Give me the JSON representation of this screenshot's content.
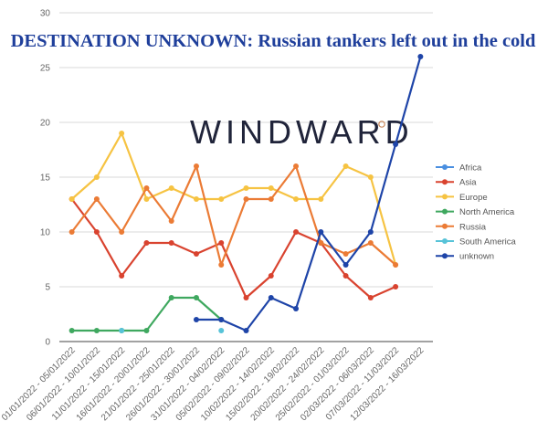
{
  "title": "DESTINATION UNKNOWN: Russian tankers left out in the cold",
  "watermark": "WINDWARD",
  "chart_data": {
    "type": "line",
    "categories": [
      "01/01/2022 - 05/01/2022",
      "06/01/2022 - 10/01/2022",
      "11/01/2022 - 15/01/2022",
      "16/01/2022 - 20/01/2022",
      "21/01/2022 - 25/01/2022",
      "26/01/2022 - 30/01/2022",
      "31/01/2022 - 04/02/2022",
      "05/02/2022 - 09/02/2022",
      "10/02/2022 - 14/02/2022",
      "15/02/2022 - 19/02/2022",
      "20/02/2022 - 24/02/2022",
      "25/02/2022 - 01/03/2022",
      "02/03/2022 - 06/03/2022",
      "07/03/2022 - 11/03/2022",
      "12/03/2022 - 16/03/2022"
    ],
    "ylim": [
      0,
      30
    ],
    "yticks": [
      "0",
      "5",
      "10",
      "15",
      "20",
      "25",
      "30"
    ],
    "grid": true,
    "legend_position": "right",
    "series": [
      {
        "name": "Africa",
        "color": "#4a8fe0",
        "values": [
          null,
          null,
          null,
          null,
          null,
          null,
          null,
          null,
          null,
          null,
          null,
          null,
          null,
          null,
          null
        ]
      },
      {
        "name": "Asia",
        "color": "#d9432f",
        "values": [
          13,
          10,
          6,
          9,
          9,
          8,
          9,
          4,
          6,
          10,
          9,
          6,
          4,
          5,
          null
        ]
      },
      {
        "name": "Europe",
        "color": "#f6c342",
        "values": [
          13,
          15,
          19,
          13,
          14,
          13,
          13,
          14,
          14,
          13,
          13,
          16,
          15,
          7,
          null
        ]
      },
      {
        "name": "North America",
        "color": "#3fa85f",
        "values": [
          1,
          1,
          1,
          1,
          4,
          4,
          2,
          null,
          null,
          null,
          null,
          null,
          null,
          null,
          null
        ]
      },
      {
        "name": "Russia",
        "color": "#eb7b35",
        "values": [
          10,
          13,
          10,
          14,
          11,
          16,
          7,
          13,
          13,
          16,
          9,
          8,
          9,
          7,
          null
        ]
      },
      {
        "name": "South America",
        "color": "#57c3d8",
        "values": [
          null,
          null,
          1,
          null,
          null,
          null,
          1,
          null,
          null,
          null,
          null,
          null,
          null,
          null,
          null
        ]
      },
      {
        "name": "unknown",
        "color": "#1e44a8",
        "values": [
          null,
          null,
          null,
          null,
          null,
          2,
          2,
          1,
          4,
          3,
          10,
          7,
          10,
          18,
          26
        ]
      }
    ]
  }
}
